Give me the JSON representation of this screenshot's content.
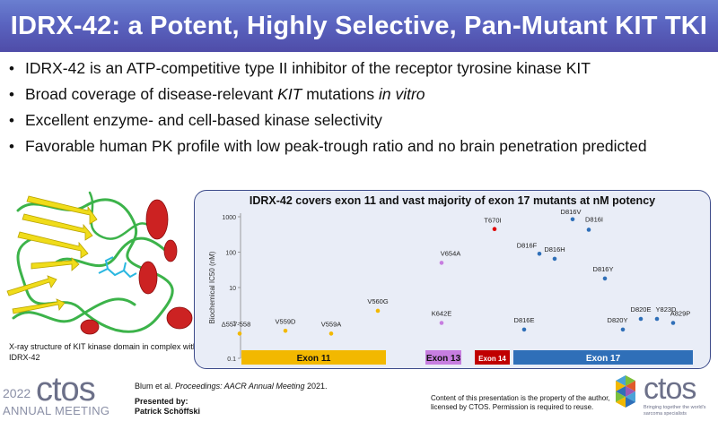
{
  "slide": {
    "title": "IDRX-42: a Potent, Highly Selective, Pan-Mutant KIT TKI"
  },
  "bullets": [
    {
      "text": "IDRX-42 is an ATP-competitive type II inhibitor of the receptor tyrosine kinase KIT"
    },
    {
      "pre": "Broad coverage of disease-relevant ",
      "em1": "KIT",
      "mid": " mutations ",
      "em2": "in vitro"
    },
    {
      "text": "Excellent enzyme- and cell-based kinase selectivity"
    },
    {
      "text": "Favorable human PK profile with low peak-trough ratio and no brain penetration predicted"
    }
  ],
  "bullet_glyph": "•",
  "figure": {
    "caption": "X-ray structure of KIT kinase domain in complex with IDRX-42"
  },
  "chart_data": {
    "type": "scatter",
    "title": "IDRX-42 covers exon 11 and vast majority of  exon 17 mutants at nM potency",
    "ylabel": "Biochemical IC50 (nM)",
    "yscale": "log",
    "ylim": [
      0.1,
      1000
    ],
    "yticks": [
      "1000",
      "100",
      "10",
      "1",
      "0.1"
    ],
    "points": [
      {
        "label": "Δ557-558",
        "value": 0.5,
        "color": "#f2b800",
        "exon": "Exon 11"
      },
      {
        "label": "V559D",
        "value": 0.6,
        "color": "#f2b800",
        "exon": "Exon 11"
      },
      {
        "label": "V559A",
        "value": 0.5,
        "color": "#f2b800",
        "exon": "Exon 11"
      },
      {
        "label": "V560G",
        "value": 2.2,
        "color": "#f2b800",
        "exon": "Exon 11"
      },
      {
        "label": "V654A",
        "value": 50,
        "color": "#c77ee0",
        "exon": "Exon 13"
      },
      {
        "label": "K642E",
        "value": 1.0,
        "color": "#c77ee0",
        "exon": "Exon 13"
      },
      {
        "label": "T670I",
        "value": 450,
        "color": "#e00000",
        "exon": "Exon 14"
      },
      {
        "label": "D816E",
        "value": 0.65,
        "color": "#2f6fb8",
        "exon": "Exon 17"
      },
      {
        "label": "D816F",
        "value": 90,
        "color": "#2f6fb8",
        "exon": "Exon 17"
      },
      {
        "label": "D816H",
        "value": 65,
        "color": "#2f6fb8",
        "exon": "Exon 17"
      },
      {
        "label": "D816V",
        "value": 850,
        "color": "#2f6fb8",
        "exon": "Exon 17"
      },
      {
        "label": "D816I",
        "value": 430,
        "color": "#2f6fb8",
        "exon": "Exon 17"
      },
      {
        "label": "D816Y",
        "value": 18,
        "color": "#2f6fb8",
        "exon": "Exon 17"
      },
      {
        "label": "D820Y",
        "value": 0.65,
        "color": "#2f6fb8",
        "exon": "Exon 17"
      },
      {
        "label": "D820E",
        "value": 1.3,
        "color": "#2f6fb8",
        "exon": "Exon 17"
      },
      {
        "label": "Y823D",
        "value": 1.3,
        "color": "#2f6fb8",
        "exon": "Exon 17"
      },
      {
        "label": "A829P",
        "value": 1.0,
        "color": "#2f6fb8",
        "exon": "Exon 17"
      }
    ],
    "exons": [
      {
        "label": "Exon 11",
        "color": "#f2b800",
        "text_color": "#111111"
      },
      {
        "label": "Exon 13",
        "color": "#c77ee0",
        "text_color": "#111111"
      },
      {
        "label": "Exon 14",
        "color": "#c00000",
        "text_color": "#ffffff"
      },
      {
        "label": "Exon 17",
        "color": "#2f6fb8",
        "text_color": "#ffffff"
      }
    ]
  },
  "footer": {
    "citation_pre": "Blum et al. ",
    "citation_em": "Proceedings: AACR Annual Meeting",
    "citation_post": " 2021.",
    "presented_label": "Presented by:",
    "presenter": "Patrick Schöffski",
    "copyright_line1": "Content of this presentation is the property of the author,",
    "copyright_line2": "licensed by CTOS. Permission is required to reuse.",
    "logo_left_year": "2022",
    "logo_left_word": "ctos",
    "logo_left_meeting": "ANNUAL MEETING",
    "logo_right_word": "ctos",
    "logo_right_tagline": "Bringing together the world's sarcoma specialists",
    "colors": {
      "logo_gray": "#6c7089",
      "accent_blue": "#2f6fb8"
    }
  }
}
